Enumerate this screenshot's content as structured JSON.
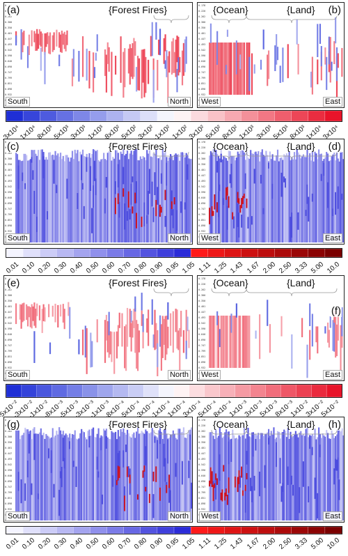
{
  "colors": {
    "neg_strong": "#1f2fd6",
    "pos_strong": "#e8142a",
    "ratio_low": "#2b2bd8",
    "ratio_high": "#7a0000",
    "mid": "#ffffff"
  },
  "panels": [
    {
      "id": "a",
      "label": "(a)",
      "region": "{Forest Fires}",
      "left_text": "South",
      "right_text": "North",
      "kind": "diff_coarse"
    },
    {
      "id": "b",
      "label": "(b)",
      "region1": "{Ocean}",
      "region2": "{Land}",
      "left_text": "West",
      "right_text": "East",
      "kind": "diff_coarse"
    },
    {
      "id": "c",
      "label": "(c)",
      "region": "{Forest Fires}",
      "left_text": "South",
      "right_text": "North",
      "kind": "ratio"
    },
    {
      "id": "d",
      "label": "(d)",
      "region1": "{Ocean}",
      "region2": "{Land}",
      "left_text": "West",
      "right_text": "East",
      "kind": "ratio"
    },
    {
      "id": "e",
      "label": "(e)",
      "region": "{Forest Fires}",
      "left_text": "South",
      "right_text": "North",
      "kind": "diff_fine"
    },
    {
      "id": "f",
      "label": "(f)",
      "region1": "{Ocean}",
      "region2": "{Land}",
      "left_text": "West",
      "right_text": "East",
      "kind": "diff_fine"
    },
    {
      "id": "g",
      "label": "(g)",
      "region": "{Forest Fires}",
      "left_text": "South",
      "right_text": "North",
      "kind": "ratio"
    },
    {
      "id": "h",
      "label": "(h)",
      "region1": "{Ocean}",
      "region2": "{Land}",
      "left_text": "West",
      "right_text": "East",
      "kind": "ratio"
    }
  ],
  "y_tick_labels": [
    "0.178",
    "0.220",
    "0.262",
    "0.300",
    "0.350",
    "0.401",
    "0.447",
    "0.493",
    "0.542",
    "0.590",
    "0.640",
    "0.690",
    "0.747",
    "0.799",
    "0.851",
    "0.898",
    "0.932",
    "0.962",
    "0.987"
  ],
  "colorbar1": {
    "ticks": [
      "-3x10⁴",
      "-1x10⁴",
      "-8x10³",
      "-5x10³",
      "-3x10³",
      "-1x10³",
      "-8x10²",
      "-5x10²",
      "-3x10²",
      "-1x10²",
      "1x10²",
      "3x10²",
      "5x10²",
      "8x10²",
      "1x10³",
      "3x10³",
      "5x10³",
      "8x10³",
      "1x10⁴",
      "3x10⁴"
    ]
  },
  "colorbar2": {
    "ticks": [
      "0.01",
      "0.10",
      "0.20",
      "0.30",
      "0.40",
      "0.50",
      "0.60",
      "0.70",
      "0.80",
      "0.90",
      "0.95",
      "1.05",
      "1.11",
      "1.25",
      "1.43",
      "1.67",
      "2.00",
      "2.50",
      "3.33",
      "5.00",
      "10.0"
    ]
  },
  "colorbar3": {
    "ticks": [
      "-5x10⁻²",
      "-3x10⁻²",
      "-1x10⁻²",
      "-8x10⁻³",
      "-5x10⁻³",
      "-3x10⁻³",
      "-1x10⁻³",
      "-8x10⁻⁴",
      "-5x10⁻⁴",
      "-3x10⁻⁴",
      "-1x10⁻⁴",
      "1x10⁻⁴",
      "3x10⁻⁴",
      "5x10⁻⁴",
      "8x10⁻⁴",
      "1x10⁻³",
      "3x10⁻³",
      "5x10⁻³",
      "8x10⁻³",
      "1x10⁻²",
      "3x10⁻²",
      "5x10⁻²"
    ]
  },
  "colorbar4": {
    "ticks": [
      "0.01",
      "0.10",
      "0.20",
      "0.30",
      "0.40",
      "0.50",
      "0.60",
      "0.70",
      "0.80",
      "0.90",
      "0.95",
      "1.05",
      "1.11",
      "1.25",
      "1.43",
      "1.67",
      "2.00",
      "2.50",
      "3.33",
      "5.00",
      "10.0"
    ]
  },
  "chart_data": [
    {
      "type": "heatmap",
      "panel": "a",
      "region": "{Forest Fires}",
      "x_ends": [
        "South",
        "North"
      ],
      "colorbar": "colorbar1"
    },
    {
      "type": "heatmap",
      "panel": "b",
      "regions": [
        "{Ocean}",
        "{Land}"
      ],
      "x_ends": [
        "West",
        "East"
      ],
      "colorbar": "colorbar1"
    },
    {
      "type": "heatmap",
      "panel": "c",
      "region": "{Forest Fires}",
      "x_ends": [
        "South",
        "North"
      ],
      "colorbar": "colorbar2"
    },
    {
      "type": "heatmap",
      "panel": "d",
      "regions": [
        "{Ocean}",
        "{Land}"
      ],
      "x_ends": [
        "West",
        "East"
      ],
      "colorbar": "colorbar2"
    },
    {
      "type": "heatmap",
      "panel": "e",
      "region": "{Forest Fires}",
      "x_ends": [
        "South",
        "North"
      ],
      "colorbar": "colorbar3"
    },
    {
      "type": "heatmap",
      "panel": "f",
      "regions": [
        "{Ocean}",
        "{Land}"
      ],
      "x_ends": [
        "West",
        "East"
      ],
      "colorbar": "colorbar3"
    },
    {
      "type": "heatmap",
      "panel": "g",
      "region": "{Forest Fires}",
      "x_ends": [
        "South",
        "North"
      ],
      "colorbar": "colorbar4"
    },
    {
      "type": "heatmap",
      "panel": "h",
      "regions": [
        "{Ocean}",
        "{Land}"
      ],
      "x_ends": [
        "West",
        "East"
      ],
      "colorbar": "colorbar4"
    }
  ]
}
